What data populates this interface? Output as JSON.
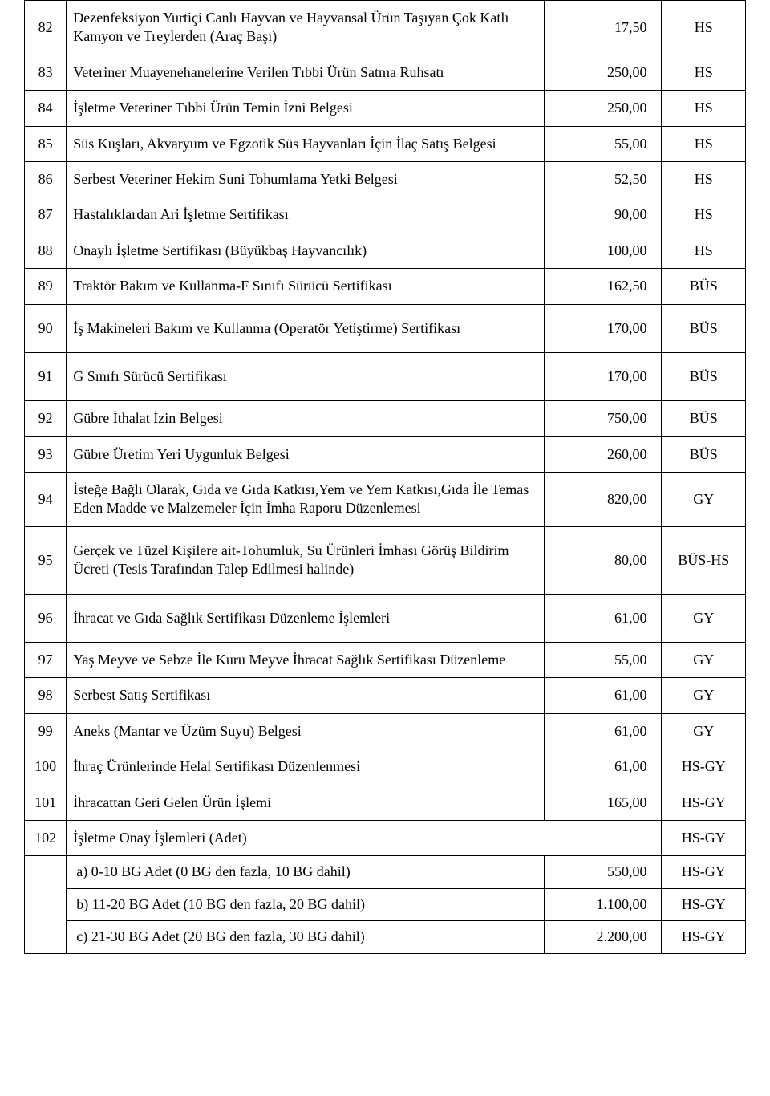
{
  "table": {
    "columns": {
      "num_width": 50,
      "desc_width": 570,
      "price_width": 140,
      "code_width": 100,
      "alignment": [
        "center",
        "left",
        "right",
        "center"
      ]
    },
    "font_family": "Times New Roman",
    "font_size_pt": 14,
    "border_color": "#000000",
    "background_color": "#ffffff",
    "text_color": "#000000",
    "rows": [
      {
        "num": "82",
        "desc": "Dezenfeksiyon Yurtiçi Canlı Hayvan ve Hayvansal Ürün Taşıyan Çok Katlı Kamyon ve Treylerden (Araç Başı)",
        "price": "17,50",
        "code": "HS"
      },
      {
        "num": "83",
        "desc": "Veteriner Muayenehanelerine  Verilen Tıbbi Ürün Satma  Ruhsatı",
        "price": "250,00",
        "code": "HS"
      },
      {
        "num": "84",
        "desc": "İşletme Veteriner Tıbbi Ürün Temin İzni Belgesi",
        "price": "250,00",
        "code": "HS"
      },
      {
        "num": "85",
        "desc": "Süs Kuşları, Akvaryum ve Egzotik Süs Hayvanları İçin İlaç Satış Belgesi",
        "price": "55,00",
        "code": "HS"
      },
      {
        "num": "86",
        "desc": "Serbest Veteriner Hekim Suni Tohumlama Yetki Belgesi",
        "price": "52,50",
        "code": "HS"
      },
      {
        "num": "87",
        "desc": "Hastalıklardan Ari İşletme Sertifikası",
        "price": "90,00",
        "code": "HS"
      },
      {
        "num": "88",
        "desc": "Onaylı İşletme Sertifikası (Büyükbaş Hayvancılık)",
        "price": "100,00",
        "code": "HS"
      },
      {
        "num": "89",
        "desc": "Traktör Bakım ve Kullanma-F Sınıfı Sürücü Sertifikası",
        "price": "162,50",
        "code": "BÜS"
      },
      {
        "num": "90",
        "desc": "İş Makineleri Bakım ve Kullanma (Operatör Yetiştirme) Sertifikası",
        "price": "170,00",
        "code": "BÜS"
      },
      {
        "num": "91",
        "desc": "G Sınıfı Sürücü Sertifikası",
        "price": "170,00",
        "code": "BÜS"
      },
      {
        "num": "92",
        "desc": "Gübre İthalat İzin Belgesi",
        "price": "750,00",
        "code": "BÜS"
      },
      {
        "num": "93",
        "desc": "Gübre Üretim Yeri Uygunluk Belgesi",
        "price": "260,00",
        "code": "BÜS"
      },
      {
        "num": "94",
        "desc": "İsteğe Bağlı Olarak, Gıda ve Gıda Katkısı,Yem ve Yem Katkısı,Gıda İle Temas Eden Madde ve Malzemeler İçin İmha Raporu Düzenlemesi",
        "price": "820,00",
        "code": "GY"
      },
      {
        "num": "95",
        "desc": "Gerçek ve Tüzel Kişilere ait-Tohumluk, Su Ürünleri İmhası Görüş Bildirim Ücreti (Tesis Tarafından Talep Edilmesi halinde)",
        "price": "80,00",
        "code": "BÜS-HS"
      },
      {
        "num": "96",
        "desc": "İhracat ve Gıda Sağlık Sertifikası Düzenleme İşlemleri",
        "price": "61,00",
        "code": "GY"
      },
      {
        "num": "97",
        "desc": "Yaş Meyve ve Sebze İle Kuru Meyve İhracat Sağlık Sertifikası Düzenleme",
        "price": "55,00",
        "code": "GY"
      },
      {
        "num": "98",
        "desc": "Serbest Satış Sertifikası",
        "price": "61,00",
        "code": "GY"
      },
      {
        "num": "99",
        "desc": "Aneks (Mantar ve Üzüm Suyu) Belgesi",
        "price": "61,00",
        "code": "GY"
      },
      {
        "num": "100",
        "desc": "İhraç Ürünlerinde Helal Sertifikası Düzenlenmesi",
        "price": "61,00",
        "code": "HS-GY"
      },
      {
        "num": "101",
        "desc": "İhracattan Geri Gelen Ürün İşlemi",
        "price": "165,00",
        "code": "HS-GY"
      },
      {
        "num": "102",
        "desc": "İşletme Onay İşlemleri (Adet)",
        "price": "",
        "code": "HS-GY"
      }
    ],
    "subrows": [
      {
        "desc": "a) 0-10 BG Adet (0 BG den fazla, 10 BG dahil)",
        "price": "550,00",
        "code": "HS-GY"
      },
      {
        "desc": " b) 11-20 BG Adet (10 BG den fazla, 20 BG dahil)",
        "price": "1.100,00",
        "code": "HS-GY"
      },
      {
        "desc": "c) 21-30 BG Adet (20 BG den fazla, 30 BG dahil)",
        "price": "2.200,00",
        "code": "HS-GY"
      }
    ]
  }
}
